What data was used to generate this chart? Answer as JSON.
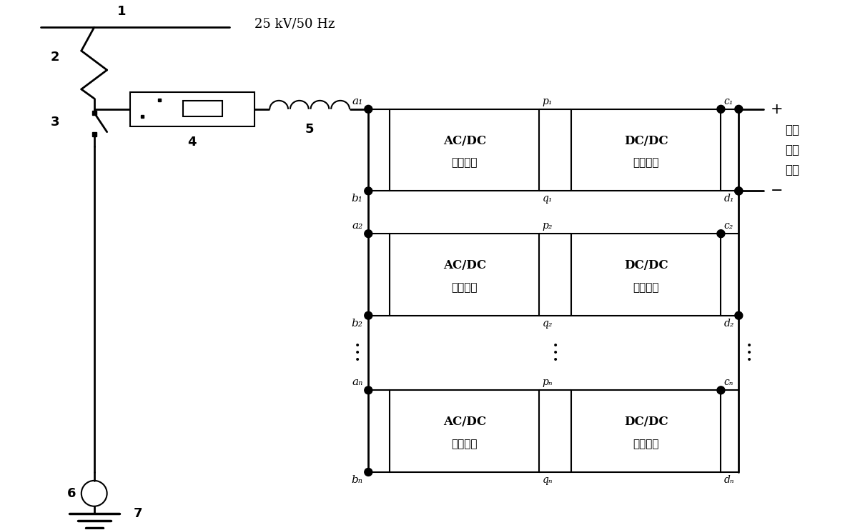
{
  "bg_color": "#ffffff",
  "text_color": "#000000",
  "freq_label": "25 kV/50 Hz",
  "rows": [
    {
      "a": "a₁",
      "b": "b₁",
      "p": "p₁",
      "q": "q₁",
      "c": "c₁",
      "d": "d₁"
    },
    {
      "a": "a₂",
      "b": "b₂",
      "p": "p₂",
      "q": "q₂",
      "c": "c₂",
      "d": "d₂"
    },
    {
      "a": "aₙ",
      "b": "bₙ",
      "p": "pₙ",
      "q": "qₙ",
      "c": "cₙ",
      "d": "dₙ"
    }
  ],
  "label1": "1",
  "label2": "2",
  "label3": "3",
  "label4": "4",
  "label5": "5",
  "label6": "6",
  "label7": "7",
  "plus_label": "+",
  "minus_label": "−",
  "out_line1": "输出",
  "out_line2": "直流",
  "out_line3": "电压",
  "acdc_line1": "AC/DC",
  "acdc_line2": "变换单元",
  "dcdc_line1": "DC/DC",
  "dcdc_line2": "变换单元"
}
